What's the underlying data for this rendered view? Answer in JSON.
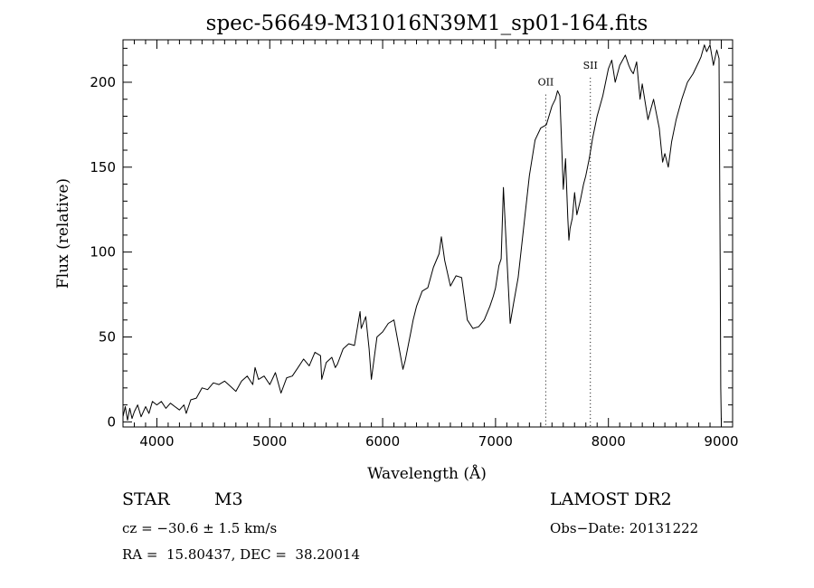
{
  "chart_data": {
    "type": "line",
    "title": "spec-56649-M31016N39M1_sp01-164.fits",
    "xlabel": "Wavelength (Å)",
    "ylabel": "Flux (relative)",
    "xlim": [
      3700,
      9100
    ],
    "ylim": [
      -3,
      225
    ],
    "xticks": [
      4000,
      5000,
      6000,
      7000,
      8000,
      9000
    ],
    "yticks": [
      0,
      50,
      100,
      150,
      200
    ],
    "annotations": [
      {
        "label": "OII",
        "x": 7445,
        "y_text": 198
      },
      {
        "label": "SII",
        "x": 7840,
        "y_text": 208
      }
    ],
    "series": [
      {
        "name": "spectrum",
        "x": [
          3700,
          3720,
          3740,
          3760,
          3780,
          3800,
          3830,
          3860,
          3900,
          3930,
          3960,
          4000,
          4040,
          4080,
          4120,
          4160,
          4200,
          4240,
          4260,
          4300,
          4350,
          4400,
          4450,
          4500,
          4550,
          4600,
          4650,
          4700,
          4750,
          4800,
          4850,
          4870,
          4900,
          4950,
          5000,
          5050,
          5100,
          5150,
          5200,
          5250,
          5300,
          5350,
          5400,
          5450,
          5460,
          5500,
          5550,
          5580,
          5600,
          5650,
          5700,
          5750,
          5800,
          5810,
          5850,
          5880,
          5900,
          5950,
          6000,
          6050,
          6100,
          6150,
          6180,
          6200,
          6250,
          6270,
          6300,
          6350,
          6400,
          6450,
          6500,
          6520,
          6550,
          6600,
          6650,
          6700,
          6750,
          6800,
          6850,
          6900,
          6950,
          6980,
          7000,
          7030,
          7050,
          7070,
          7100,
          7130,
          7160,
          7200,
          7250,
          7300,
          7350,
          7400,
          7450,
          7500,
          7530,
          7550,
          7570,
          7600,
          7620,
          7640,
          7650,
          7660,
          7680,
          7700,
          7720,
          7750,
          7780,
          7800,
          7830,
          7860,
          7900,
          7950,
          8000,
          8030,
          8060,
          8100,
          8150,
          8180,
          8200,
          8220,
          8250,
          8280,
          8300,
          8350,
          8400,
          8450,
          8480,
          8500,
          8530,
          8560,
          8600,
          8650,
          8700,
          8750,
          8800,
          8820,
          8850,
          8870,
          8900,
          8930,
          8960,
          8980,
          8990,
          8995,
          9000
        ],
        "values": [
          3,
          9,
          1,
          8,
          2,
          6,
          10,
          3,
          9,
          5,
          12,
          10,
          12,
          8,
          11,
          9,
          7,
          10,
          5,
          13,
          14,
          20,
          19,
          23,
          22,
          24,
          21,
          18,
          24,
          27,
          22,
          32,
          25,
          27,
          22,
          29,
          17,
          26,
          27,
          32,
          37,
          33,
          41,
          39,
          25,
          35,
          38,
          32,
          34,
          43,
          46,
          45,
          65,
          55,
          62,
          43,
          25,
          50,
          53,
          58,
          60,
          42,
          31,
          36,
          53,
          60,
          68,
          77,
          79,
          91,
          99,
          109,
          95,
          80,
          86,
          85,
          60,
          55,
          56,
          60,
          68,
          74,
          79,
          92,
          96,
          138,
          97,
          58,
          70,
          85,
          115,
          145,
          166,
          173,
          175,
          186,
          190,
          195,
          192,
          137,
          155,
          120,
          107,
          114,
          120,
          135,
          122,
          130,
          140,
          145,
          155,
          167,
          180,
          192,
          208,
          213,
          200,
          210,
          216,
          210,
          207,
          205,
          212,
          190,
          199,
          178,
          190,
          173,
          153,
          158,
          150,
          165,
          178,
          190,
          200,
          205,
          212,
          215,
          222,
          218,
          222,
          210,
          219,
          214,
          90,
          20,
          0
        ]
      }
    ]
  },
  "footer": {
    "object_type": "STAR",
    "subclass": "M3",
    "survey": "LAMOST DR2",
    "cz": "cz = −30.6 ± 1.5 km/s",
    "obs_date": "Obs−Date: 20131222",
    "coords": "RA =  15.80437, DEC =  38.20014"
  }
}
